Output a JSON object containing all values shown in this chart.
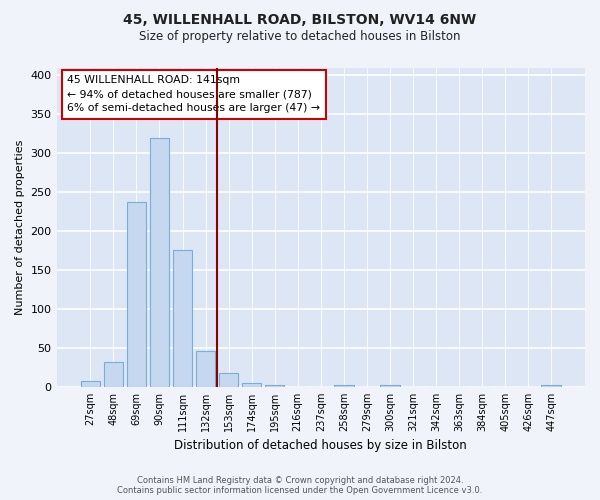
{
  "title": "45, WILLENHALL ROAD, BILSTON, WV14 6NW",
  "subtitle": "Size of property relative to detached houses in Bilston",
  "xlabel": "Distribution of detached houses by size in Bilston",
  "ylabel": "Number of detached properties",
  "bar_labels": [
    "27sqm",
    "48sqm",
    "69sqm",
    "90sqm",
    "111sqm",
    "132sqm",
    "153sqm",
    "174sqm",
    "195sqm",
    "216sqm",
    "237sqm",
    "258sqm",
    "279sqm",
    "300sqm",
    "321sqm",
    "342sqm",
    "363sqm",
    "384sqm",
    "405sqm",
    "426sqm",
    "447sqm"
  ],
  "bar_values": [
    8,
    32,
    238,
    320,
    176,
    46,
    18,
    5,
    2,
    0,
    0,
    3,
    0,
    2,
    0,
    0,
    0,
    0,
    0,
    0,
    2
  ],
  "bar_color": "#c5d8f0",
  "bar_edge_color": "#7aafd4",
  "ylim": [
    0,
    410
  ],
  "yticks": [
    0,
    50,
    100,
    150,
    200,
    250,
    300,
    350,
    400
  ],
  "vline_x": 5.5,
  "vline_color": "#8b0000",
  "annotation_title": "45 WILLENHALL ROAD: 141sqm",
  "annotation_line1": "← 94% of detached houses are smaller (787)",
  "annotation_line2": "6% of semi-detached houses are larger (47) →",
  "annotation_box_color": "#ffffff",
  "annotation_box_edge": "#cc0000",
  "footer1": "Contains HM Land Registry data © Crown copyright and database right 2024.",
  "footer2": "Contains public sector information licensed under the Open Government Licence v3.0.",
  "bg_color": "#f0f4fa",
  "plot_bg_color": "#dce6f5"
}
